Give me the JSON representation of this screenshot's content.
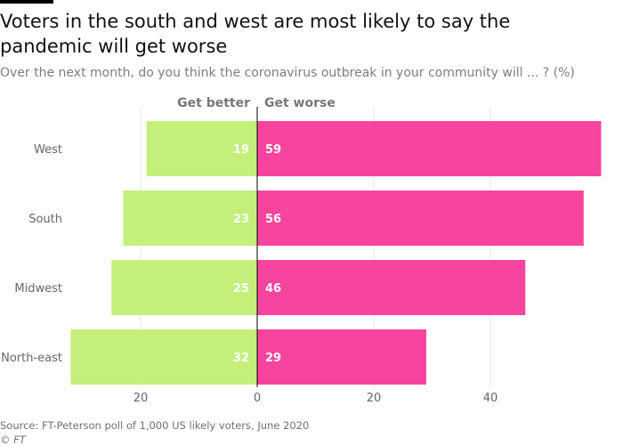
{
  "title": "Voters in the south and west are most likely to say the pandemic will get worse",
  "subtitle": "Over the next month, do you think the coronavirus outbreak in your community will ... ? (%)",
  "source": "Source: FT-Peterson poll of 1,000 US likely voters, June 2020",
  "credit": "© FT",
  "colors": {
    "better": "#c5ef7b",
    "worse": "#f7449e",
    "label_text": "#ffffff",
    "axis_text": "#666666",
    "header_text": "#777777",
    "grid": "#e6e6e6"
  },
  "chart_data": {
    "type": "bar",
    "orientation": "horizontal-diverging",
    "categories": [
      "West",
      "South",
      "Midwest",
      "North-east"
    ],
    "series": [
      {
        "name": "Get better",
        "values": [
          19,
          23,
          25,
          32
        ],
        "direction": "left"
      },
      {
        "name": "Get worse",
        "values": [
          59,
          56,
          46,
          29
        ],
        "direction": "right"
      }
    ],
    "xlim": [
      -32,
      59
    ],
    "x_ticks": [
      -20,
      0,
      20,
      40
    ],
    "x_tick_labels": [
      "20",
      "0",
      "20",
      "40"
    ],
    "xlabel": "",
    "ylabel": "",
    "grid": true,
    "data_labels": true
  }
}
